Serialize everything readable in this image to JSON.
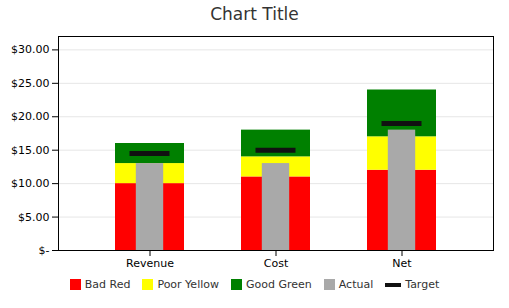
{
  "chart_data": {
    "type": "bullet",
    "title": "Chart Title",
    "categories": [
      "Revenue",
      "Cost",
      "Net"
    ],
    "series": [
      {
        "name": "Bad Red",
        "type": "range",
        "color": "#FF0000",
        "values": [
          10,
          11,
          12
        ]
      },
      {
        "name": "Poor Yellow",
        "type": "range",
        "color": "#FFFF00",
        "values": [
          3,
          3,
          5
        ]
      },
      {
        "name": "Good Green",
        "type": "range",
        "color": "#008000",
        "values": [
          3,
          4,
          7
        ]
      },
      {
        "name": "Actual",
        "type": "bar",
        "color": "#A9A9A9",
        "values": [
          13,
          13,
          18
        ]
      },
      {
        "name": "Target",
        "type": "target",
        "color": "#111111",
        "values": [
          14.5,
          15,
          19
        ]
      }
    ],
    "stacked": true,
    "ylim": [
      0,
      32
    ],
    "yticks": [
      {
        "value": 0,
        "label": "$-"
      },
      {
        "value": 5,
        "label": "$5.00"
      },
      {
        "value": 10,
        "label": "$10.00"
      },
      {
        "value": 15,
        "label": "$15.00"
      },
      {
        "value": 20,
        "label": "$20.00"
      },
      {
        "value": 25,
        "label": "$25.00"
      },
      {
        "value": 30,
        "label": "$30.00"
      }
    ],
    "grid": true,
    "legend": "bottom"
  }
}
